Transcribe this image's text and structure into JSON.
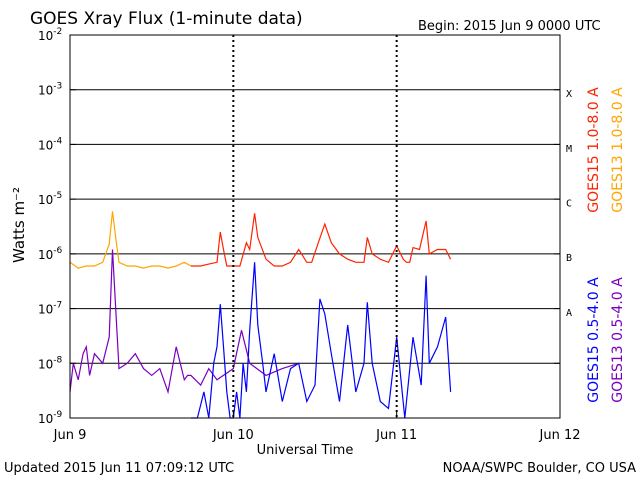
{
  "header": {
    "title": "GOES Xray Flux (1-minute data)",
    "begin": "Begin:  2015 Jun 9 0000 UTC"
  },
  "footer": {
    "updated": "Updated 2015 Jun 11 07:09:12 UTC",
    "credit": "NOAA/SWPC Boulder, CO USA"
  },
  "chart_data": {
    "type": "line",
    "title": "GOES Xray Flux (1-minute data)",
    "xlabel": "Universal Time",
    "ylabel": "Watts m⁻²",
    "yscale": "log",
    "ylim": [
      1e-09,
      0.01
    ],
    "xlim": [
      0,
      3
    ],
    "x_unit_note": "days from 2015 Jun 9 0000 UTC",
    "x_ticks": [
      {
        "x": 0,
        "label": "Jun 9"
      },
      {
        "x": 1,
        "label": "Jun 10"
      },
      {
        "x": 2,
        "label": "Jun 11"
      },
      {
        "x": 3,
        "label": "Jun 12"
      }
    ],
    "y_ticks": [
      {
        "exp": -9,
        "label": "10",
        "sup": "-9"
      },
      {
        "exp": -8,
        "label": "10",
        "sup": "-8"
      },
      {
        "exp": -7,
        "label": "10",
        "sup": "-7"
      },
      {
        "exp": -6,
        "label": "10",
        "sup": "-6"
      },
      {
        "exp": -5,
        "label": "10",
        "sup": "-5"
      },
      {
        "exp": -4,
        "label": "10",
        "sup": "-4"
      },
      {
        "exp": -3,
        "label": "10",
        "sup": "-3"
      },
      {
        "exp": -2,
        "label": "10",
        "sup": "-2"
      }
    ],
    "flare_classes": [
      {
        "label": "A",
        "exp": -7.5
      },
      {
        "label": "B",
        "exp": -6.5
      },
      {
        "label": "C",
        "exp": -5.5
      },
      {
        "label": "M",
        "exp": -4.5
      },
      {
        "label": "X",
        "exp": -3.5
      }
    ],
    "grid": true,
    "legend_position": "right",
    "colors": {
      "goes15_long": "#ff2200",
      "goes13_long": "#ffa500",
      "goes15_short": "#0000ff",
      "goes13_short": "#7a00c0",
      "axes": "#000000"
    },
    "series": [
      {
        "name": "GOES13 1.0-8.0 A",
        "color": "#ffa500",
        "x": [
          0.0,
          0.05,
          0.1,
          0.15,
          0.2,
          0.24,
          0.26,
          0.28,
          0.3,
          0.35,
          0.4,
          0.45,
          0.5,
          0.55,
          0.6,
          0.65,
          0.7,
          0.74
        ],
        "y": [
          7e-07,
          5.5e-07,
          6e-07,
          6e-07,
          7e-07,
          1.5e-06,
          6e-06,
          2e-06,
          7e-07,
          6e-07,
          6e-07,
          5.5e-07,
          6e-07,
          6e-07,
          5.5e-07,
          6e-07,
          7e-07,
          6e-07
        ]
      },
      {
        "name": "GOES15 1.0-8.0 A",
        "color": "#ff2200",
        "x": [
          0.74,
          0.8,
          0.85,
          0.9,
          0.92,
          0.94,
          0.96,
          1.0,
          1.04,
          1.08,
          1.1,
          1.13,
          1.15,
          1.2,
          1.25,
          1.3,
          1.35,
          1.4,
          1.45,
          1.48,
          1.52,
          1.56,
          1.6,
          1.65,
          1.7,
          1.75,
          1.8,
          1.82,
          1.85,
          1.9,
          1.95,
          2.0,
          2.04,
          2.06,
          2.08,
          2.1,
          2.14,
          2.18,
          2.2,
          2.25,
          2.3,
          2.33
        ],
        "y": [
          6e-07,
          6e-07,
          6.5e-07,
          7e-07,
          2.5e-06,
          1.2e-06,
          6e-07,
          6e-07,
          6e-07,
          1.6e-06,
          1.2e-06,
          5.5e-06,
          2e-06,
          8e-07,
          6e-07,
          6e-07,
          7e-07,
          1.2e-06,
          7e-07,
          7e-07,
          1.6e-06,
          3.5e-06,
          1.6e-06,
          1e-06,
          8e-07,
          7e-07,
          7e-07,
          2e-06,
          1e-06,
          8e-07,
          7e-07,
          1.4e-06,
          8e-07,
          7e-07,
          7e-07,
          1.3e-06,
          1.2e-06,
          4e-06,
          1e-06,
          1.2e-06,
          1.2e-06,
          8e-07
        ]
      },
      {
        "name": "GOES13 0.5-4.0 A",
        "color": "#7a00c0",
        "x": [
          0.0,
          0.02,
          0.05,
          0.08,
          0.1,
          0.12,
          0.15,
          0.2,
          0.24,
          0.26,
          0.28,
          0.3,
          0.35,
          0.4,
          0.45,
          0.5,
          0.55,
          0.6,
          0.65,
          0.7,
          0.72,
          0.74,
          0.8,
          0.85,
          0.9,
          1.0,
          1.05,
          1.1,
          1.2,
          1.3,
          1.4
        ],
        "y": [
          3e-09,
          1e-08,
          5e-09,
          1.5e-08,
          2e-08,
          6e-09,
          1.5e-08,
          1e-08,
          3e-08,
          1.2e-06,
          1e-07,
          8e-09,
          1e-08,
          1.5e-08,
          8e-09,
          6e-09,
          8e-09,
          3e-09,
          2e-08,
          5e-09,
          6e-09,
          6e-09,
          4e-09,
          8e-09,
          5e-09,
          8e-09,
          4e-08,
          1e-08,
          6e-09,
          8e-09,
          1e-08
        ]
      },
      {
        "name": "GOES15 0.5-4.0 A",
        "color": "#0000ff",
        "x": [
          0.74,
          0.78,
          0.82,
          0.85,
          0.88,
          0.9,
          0.92,
          0.94,
          0.96,
          0.98,
          1.0,
          1.02,
          1.04,
          1.06,
          1.08,
          1.1,
          1.13,
          1.15,
          1.18,
          1.2,
          1.25,
          1.3,
          1.35,
          1.4,
          1.45,
          1.5,
          1.53,
          1.56,
          1.6,
          1.65,
          1.7,
          1.75,
          1.8,
          1.82,
          1.85,
          1.9,
          1.95,
          2.0,
          2.05,
          2.1,
          2.15,
          2.18,
          2.2,
          2.25,
          2.3,
          2.33
        ],
        "y": [
          1e-09,
          1e-09,
          3e-09,
          1e-09,
          1e-08,
          2e-08,
          1.2e-07,
          2e-08,
          3e-09,
          1e-09,
          1e-09,
          3e-09,
          1e-09,
          1e-08,
          3e-09,
          4e-08,
          7e-07,
          5e-08,
          1e-08,
          3e-09,
          1.5e-08,
          2e-09,
          8e-09,
          1e-08,
          2e-09,
          4e-09,
          1.5e-07,
          8e-08,
          1.5e-08,
          2e-09,
          5e-08,
          3e-09,
          1e-08,
          1.3e-07,
          1e-08,
          2e-09,
          1.5e-09,
          3e-08,
          1e-09,
          3e-08,
          4e-09,
          4e-07,
          1e-08,
          2e-08,
          7e-08,
          3e-09
        ]
      }
    ]
  }
}
